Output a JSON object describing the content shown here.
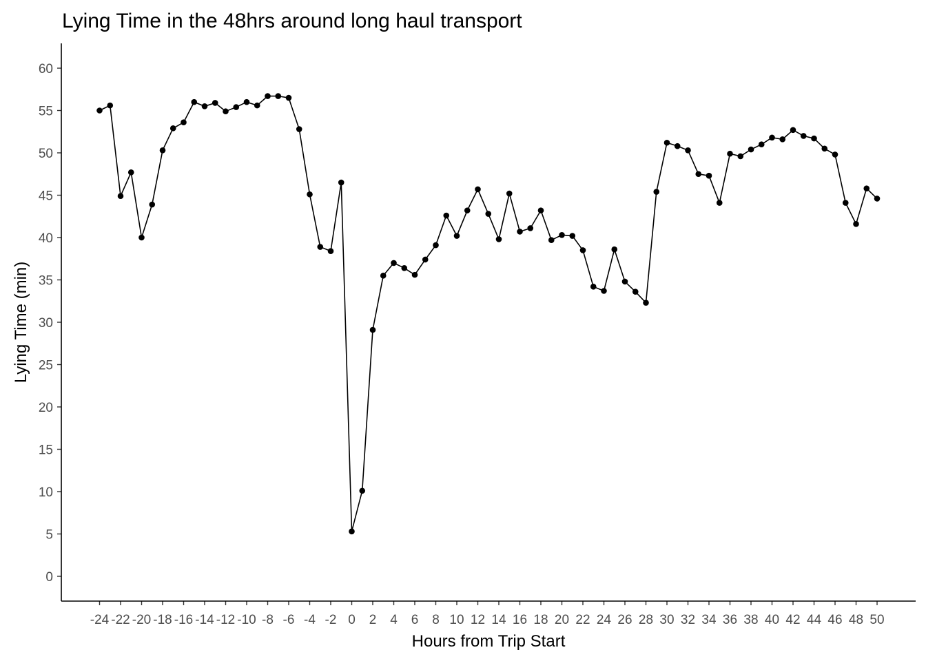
{
  "chart_data": {
    "type": "line",
    "title": "Lying Time in the 48hrs around long haul transport",
    "xlabel": "Hours from Trip Start",
    "ylabel": "Lying Time (min)",
    "xlim": [
      -24,
      50
    ],
    "ylim": [
      0,
      60
    ],
    "x_ticks": [
      -24,
      -22,
      -20,
      -18,
      -16,
      -14,
      -12,
      -10,
      -8,
      -6,
      -4,
      -2,
      0,
      2,
      4,
      6,
      8,
      10,
      12,
      14,
      16,
      18,
      20,
      22,
      24,
      26,
      28,
      30,
      32,
      34,
      36,
      38,
      40,
      42,
      44,
      46,
      48,
      50
    ],
    "y_ticks": [
      0,
      5,
      10,
      15,
      20,
      25,
      30,
      35,
      40,
      45,
      50,
      55,
      60
    ],
    "grid": false,
    "legend": "none",
    "series": [
      {
        "x": [
          -24,
          -23,
          -22,
          -21,
          -20,
          -19,
          -18,
          -17,
          -16,
          -15,
          -14,
          -13,
          -12,
          -11,
          -10,
          -9,
          -8,
          -7,
          -6,
          -5,
          -4,
          -3,
          -2,
          -1,
          0,
          1,
          2,
          3,
          4,
          5,
          6,
          7,
          8,
          9,
          10,
          11,
          12,
          13,
          14,
          15,
          16,
          17,
          18,
          19,
          20,
          21,
          22,
          23,
          24,
          25,
          26,
          27,
          28,
          29,
          30,
          31,
          32,
          33,
          34,
          35,
          36,
          37,
          38,
          39,
          40,
          41,
          42,
          43,
          44,
          45,
          46,
          47,
          48,
          49,
          50
        ],
        "values": [
          55.0,
          55.6,
          44.9,
          47.7,
          40.0,
          43.9,
          50.3,
          52.9,
          53.6,
          56.0,
          55.5,
          55.9,
          54.9,
          55.4,
          56.0,
          55.6,
          56.7,
          56.7,
          56.5,
          52.8,
          45.1,
          38.9,
          38.4,
          46.5,
          5.3,
          10.1,
          29.1,
          35.5,
          37.0,
          36.4,
          35.6,
          37.4,
          39.1,
          42.6,
          40.2,
          43.2,
          45.7,
          42.8,
          39.8,
          45.2,
          40.7,
          41.1,
          43.2,
          39.7,
          40.3,
          40.2,
          38.5,
          34.2,
          33.7,
          38.6,
          34.8,
          33.6,
          32.3,
          45.4,
          51.2,
          50.8,
          50.3,
          47.5,
          47.3,
          44.1,
          49.9,
          49.6,
          50.4,
          51.0,
          51.8,
          51.6,
          52.7,
          52.0,
          51.7,
          50.5,
          49.8,
          44.1,
          41.6,
          45.8,
          44.6
        ]
      }
    ]
  }
}
